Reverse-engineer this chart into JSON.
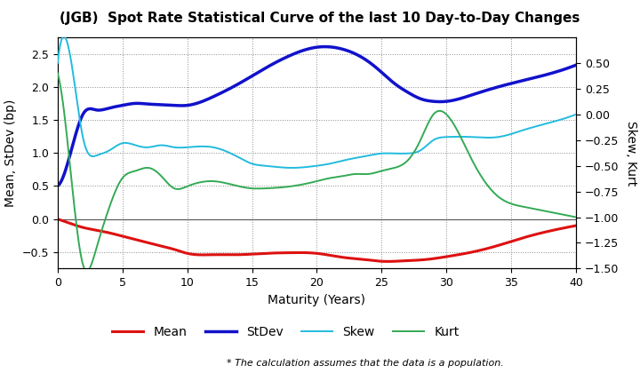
{
  "title": "(JGB)  Spot Rate Statistical Curve of the last 10 Day-to-Day Changes",
  "xlabel": "Maturity (Years)",
  "ylabel_left": "Mean, StDev (bp)",
  "ylabel_right": "Skew, Kurt",
  "footnote": "* The calculation assumes that the data is a population.",
  "xlim": [
    0,
    40
  ],
  "ylim_left": [
    -0.75,
    2.75
  ],
  "ylim_right": [
    -1.5,
    0.75
  ],
  "xticks": [
    0,
    5,
    10,
    15,
    20,
    25,
    30,
    35,
    40
  ],
  "yticks_left": [
    -0.5,
    0.0,
    0.5,
    1.0,
    1.5,
    2.0,
    2.5
  ],
  "yticks_right": [
    -1.5,
    -1.25,
    -1.0,
    -0.75,
    -0.5,
    -0.25,
    0.0,
    0.25,
    0.5
  ],
  "mean_color": "#dd1111",
  "stdev_color": "#1111cc",
  "skew_color": "#22bbdd",
  "kurt_color": "#33aa55",
  "mean_x": [
    0,
    1,
    2,
    3,
    4,
    5,
    6,
    7,
    8,
    9,
    10,
    12,
    14,
    16,
    18,
    20,
    22,
    24,
    25,
    26,
    27,
    28,
    29,
    30,
    32,
    34,
    36,
    38,
    40
  ],
  "mean_y": [
    0.0,
    -0.07,
    -0.13,
    -0.17,
    -0.21,
    -0.26,
    -0.31,
    -0.36,
    -0.41,
    -0.46,
    -0.52,
    -0.54,
    -0.54,
    -0.52,
    -0.51,
    -0.52,
    -0.58,
    -0.62,
    -0.64,
    -0.64,
    -0.63,
    -0.62,
    -0.6,
    -0.57,
    -0.5,
    -0.4,
    -0.28,
    -0.18,
    -0.1
  ],
  "stdev_x": [
    0,
    1,
    2,
    3,
    4,
    5,
    6,
    7,
    8,
    9,
    10,
    12,
    14,
    16,
    18,
    20,
    22,
    24,
    25,
    26,
    27,
    28,
    29,
    30,
    32,
    34,
    36,
    38,
    40
  ],
  "stdev_y": [
    0.5,
    1.0,
    1.6,
    1.65,
    1.68,
    1.72,
    1.75,
    1.74,
    1.73,
    1.72,
    1.72,
    1.85,
    2.05,
    2.28,
    2.48,
    2.6,
    2.57,
    2.38,
    2.22,
    2.05,
    1.92,
    1.82,
    1.78,
    1.78,
    1.88,
    2.0,
    2.1,
    2.2,
    2.33
  ],
  "skew_x": [
    0,
    1,
    2,
    3,
    4,
    5,
    6,
    7,
    8,
    9,
    10,
    12,
    14,
    15,
    16,
    18,
    20,
    21,
    22,
    24,
    25,
    26,
    27,
    28,
    29,
    30,
    32,
    34,
    36,
    38,
    40
  ],
  "skew_y": [
    0.5,
    0.55,
    -0.25,
    -0.4,
    -0.35,
    -0.28,
    -0.3,
    -0.32,
    -0.3,
    -0.32,
    -0.32,
    -0.32,
    -0.42,
    -0.48,
    -0.5,
    -0.52,
    -0.5,
    -0.48,
    -0.45,
    -0.4,
    -0.38,
    -0.38,
    -0.38,
    -0.35,
    -0.25,
    -0.22,
    -0.22,
    -0.22,
    -0.15,
    -0.08,
    0.0
  ],
  "kurt_x": [
    0,
    1,
    2,
    3,
    4,
    5,
    6,
    7,
    8,
    9,
    10,
    12,
    14,
    15,
    16,
    18,
    20,
    21,
    22,
    23,
    24,
    25,
    26,
    27,
    28,
    29,
    30,
    32,
    34,
    36,
    38,
    40
  ],
  "kurt_y": [
    0.4,
    -0.55,
    -1.48,
    -1.3,
    -0.9,
    -0.62,
    -0.55,
    -0.52,
    -0.6,
    -0.72,
    -0.7,
    -0.65,
    -0.7,
    -0.72,
    -0.72,
    -0.7,
    -0.65,
    -0.62,
    -0.6,
    -0.58,
    -0.58,
    -0.55,
    -0.52,
    -0.45,
    -0.25,
    0.0,
    0.0,
    -0.45,
    -0.8,
    -0.9,
    -0.95,
    -1.0
  ]
}
